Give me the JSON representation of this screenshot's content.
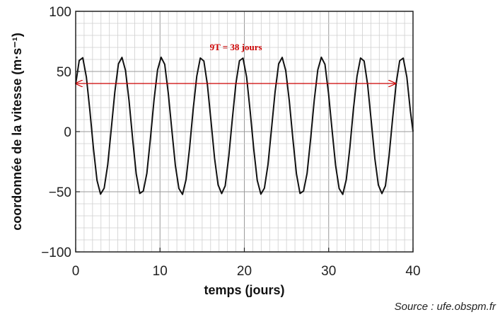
{
  "chart_data": {
    "type": "line",
    "xlabel": "temps (jours)",
    "ylabel": "coordonnée de la vitesse (m·s⁻¹)",
    "xlim": [
      0,
      40
    ],
    "ylim": [
      -100,
      100
    ],
    "x_ticks": [
      0,
      10,
      20,
      30,
      40
    ],
    "y_ticks": [
      100,
      50,
      0,
      -50,
      -100
    ],
    "x_tick_labels": [
      "0",
      "10",
      "20",
      "30",
      "40"
    ],
    "y_tick_labels": [
      "100",
      "50",
      "0",
      "−50",
      "−100"
    ],
    "grid": true,
    "series": [
      {
        "x": [
          0,
          0.42,
          0.84,
          1.27,
          1.69,
          2.11,
          2.53,
          2.95,
          3.38,
          3.8,
          4.22,
          4.64,
          5.07,
          5.49,
          5.91,
          6.33,
          6.76,
          7.18,
          7.6,
          8.02,
          8.44,
          8.87,
          9.29,
          9.71,
          10.13,
          10.56,
          10.98,
          11.4,
          11.82,
          12.24,
          12.67,
          13.09,
          13.51,
          13.93,
          14.36,
          14.78,
          15.2,
          15.62,
          16.04,
          16.47,
          16.89,
          17.31,
          17.73,
          18.16,
          18.58,
          19,
          19.42,
          19.84,
          20.27,
          20.69,
          21.11,
          21.53,
          21.96,
          22.38,
          22.8,
          23.22,
          23.64,
          24.07,
          24.49,
          24.91,
          25.33,
          25.76,
          26.18,
          26.6,
          27.02,
          27.44,
          27.87,
          28.29,
          28.71,
          29.13,
          29.56,
          29.98,
          30.4,
          30.82,
          31.24,
          31.67,
          32.09,
          32.51,
          32.93,
          33.36,
          33.78,
          34.2,
          34.62,
          35.04,
          35.47,
          35.89,
          36.31,
          36.73,
          37.16,
          37.58,
          38,
          38.42,
          38.84,
          39.27,
          39.69,
          40
        ],
        "values": [
          39.4,
          59.1,
          61.4,
          45.3,
          17.1,
          -14.2,
          -40.5,
          -52,
          -47,
          -27.6,
          2.1,
          32.7,
          56.3,
          61.7,
          50.8,
          25.6,
          -6.4,
          -35.2,
          -51.4,
          -49.4,
          -34.7,
          -5.3,
          26.2,
          51.3,
          61.8,
          55.9,
          32,
          1.5,
          -28.1,
          -47.3,
          -52.2,
          -39.8,
          -13.4,
          18.4,
          46.1,
          61.2,
          58.7,
          39,
          9.2,
          -22.1,
          -44.3,
          -51.5,
          -45.1,
          -20.3,
          10.8,
          40,
          58.9,
          61.1,
          45.3,
          17,
          -14.2,
          -40.5,
          -52,
          -47,
          -27.6,
          2.1,
          32.7,
          56.3,
          61.7,
          50.7,
          25.6,
          -6.4,
          -35.2,
          -51.4,
          -49.4,
          -34.7,
          -5.3,
          26.2,
          51.3,
          61.8,
          55.9,
          32,
          1.5,
          -28.1,
          -47.3,
          -52.2,
          -39.8,
          -13.4,
          18.4,
          46.1,
          61.2,
          58.7,
          39,
          9.2,
          -22.1,
          -44.3,
          -51.5,
          -45.1,
          -20.3,
          10.8,
          40,
          58.9,
          61.1,
          45.3,
          17,
          0
        ],
        "color": "#111111"
      }
    ],
    "annotations": [
      {
        "text": "9T = 38 jours",
        "arrow_from": [
          0,
          40
        ],
        "arrow_to": [
          38,
          40
        ],
        "color": "#cc0000"
      }
    ]
  },
  "source_text": "Source : ufe.obspm.fr"
}
